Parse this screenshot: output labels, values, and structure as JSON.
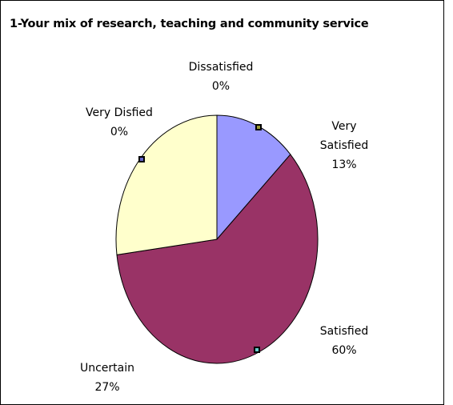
{
  "chart_data": {
    "type": "pie",
    "title": "1-Your mix of research, teaching and community service",
    "slices": [
      {
        "name": "Very Satisfied",
        "label_lines": [
          "Very",
          "Satisfied"
        ],
        "value": 13,
        "percent_label": "13%",
        "color": "#9999ff"
      },
      {
        "name": "Satisfied",
        "label_lines": [
          "Satisfied"
        ],
        "value": 60,
        "percent_label": "60%",
        "color": "#993366"
      },
      {
        "name": "Uncertain",
        "label_lines": [
          "Uncertain"
        ],
        "value": 27,
        "percent_label": "27%",
        "color": "#ffffcc"
      },
      {
        "name": "Dissatisfied",
        "label_lines": [
          "Dissatisfied"
        ],
        "value": 0,
        "percent_label": "0%",
        "color": "#ccffff"
      },
      {
        "name": "Very Disfied",
        "label_lines": [
          "Very Disfied"
        ],
        "value": 0,
        "percent_label": "0%",
        "color": "#660066"
      }
    ],
    "start_angle": "12 o'clock",
    "direction": "clockwise",
    "legend": "none",
    "outline_color": "#000000",
    "selection_handle_color": "#000000"
  }
}
